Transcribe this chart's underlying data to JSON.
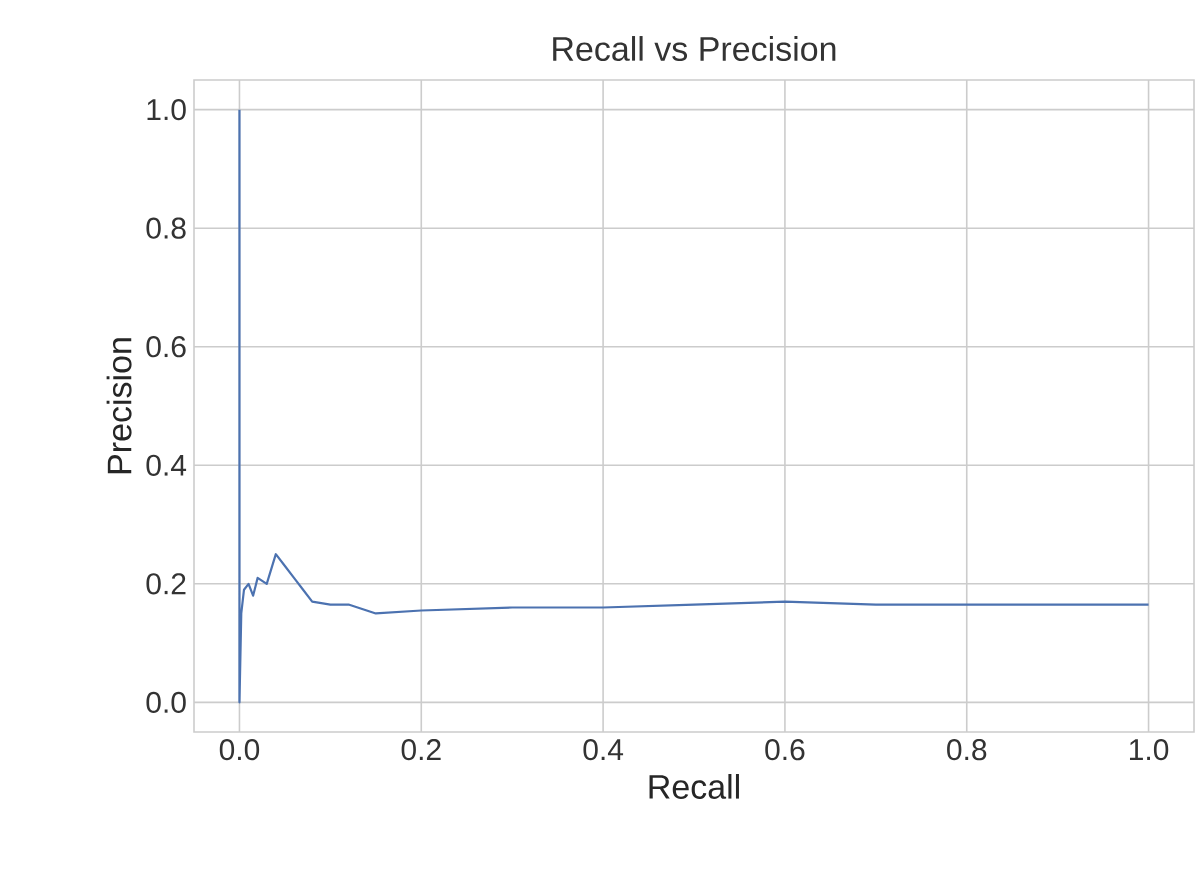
{
  "chart_data": {
    "type": "line",
    "title": "Recall vs Precision",
    "xlabel": "Recall",
    "ylabel": "Precision",
    "series": [
      {
        "color": "#4c72b0",
        "x": [
          0,
          0,
          0.002,
          0.005,
          0.01,
          0.015,
          0.02,
          0.03,
          0.04,
          0.05,
          0.06,
          0.07,
          0.08,
          0.1,
          0.12,
          0.15,
          0.2,
          0.3,
          0.4,
          0.5,
          0.6,
          0.7,
          0.8,
          0.9,
          1.0
        ],
        "values": [
          1.0,
          0.0,
          0.15,
          0.19,
          0.2,
          0.18,
          0.21,
          0.2,
          0.25,
          0.23,
          0.21,
          0.19,
          0.17,
          0.165,
          0.165,
          0.15,
          0.155,
          0.16,
          0.16,
          0.165,
          0.17,
          0.165,
          0.165,
          0.165,
          0.165
        ]
      }
    ],
    "xlim": [
      -0.05,
      1.05
    ],
    "ylim": [
      -0.05,
      1.05
    ],
    "xticks": [
      {
        "value": 0,
        "label": "0.0"
      },
      0.2,
      0.4,
      0.6,
      0.8,
      {
        "value": 1,
        "label": "1.0"
      }
    ],
    "yticks": [
      {
        "value": 0,
        "label": "0.0"
      },
      0.2,
      0.4,
      0.6,
      0.8,
      {
        "value": 1,
        "label": "1.0"
      }
    ],
    "grid": true,
    "line_style": "solid"
  }
}
